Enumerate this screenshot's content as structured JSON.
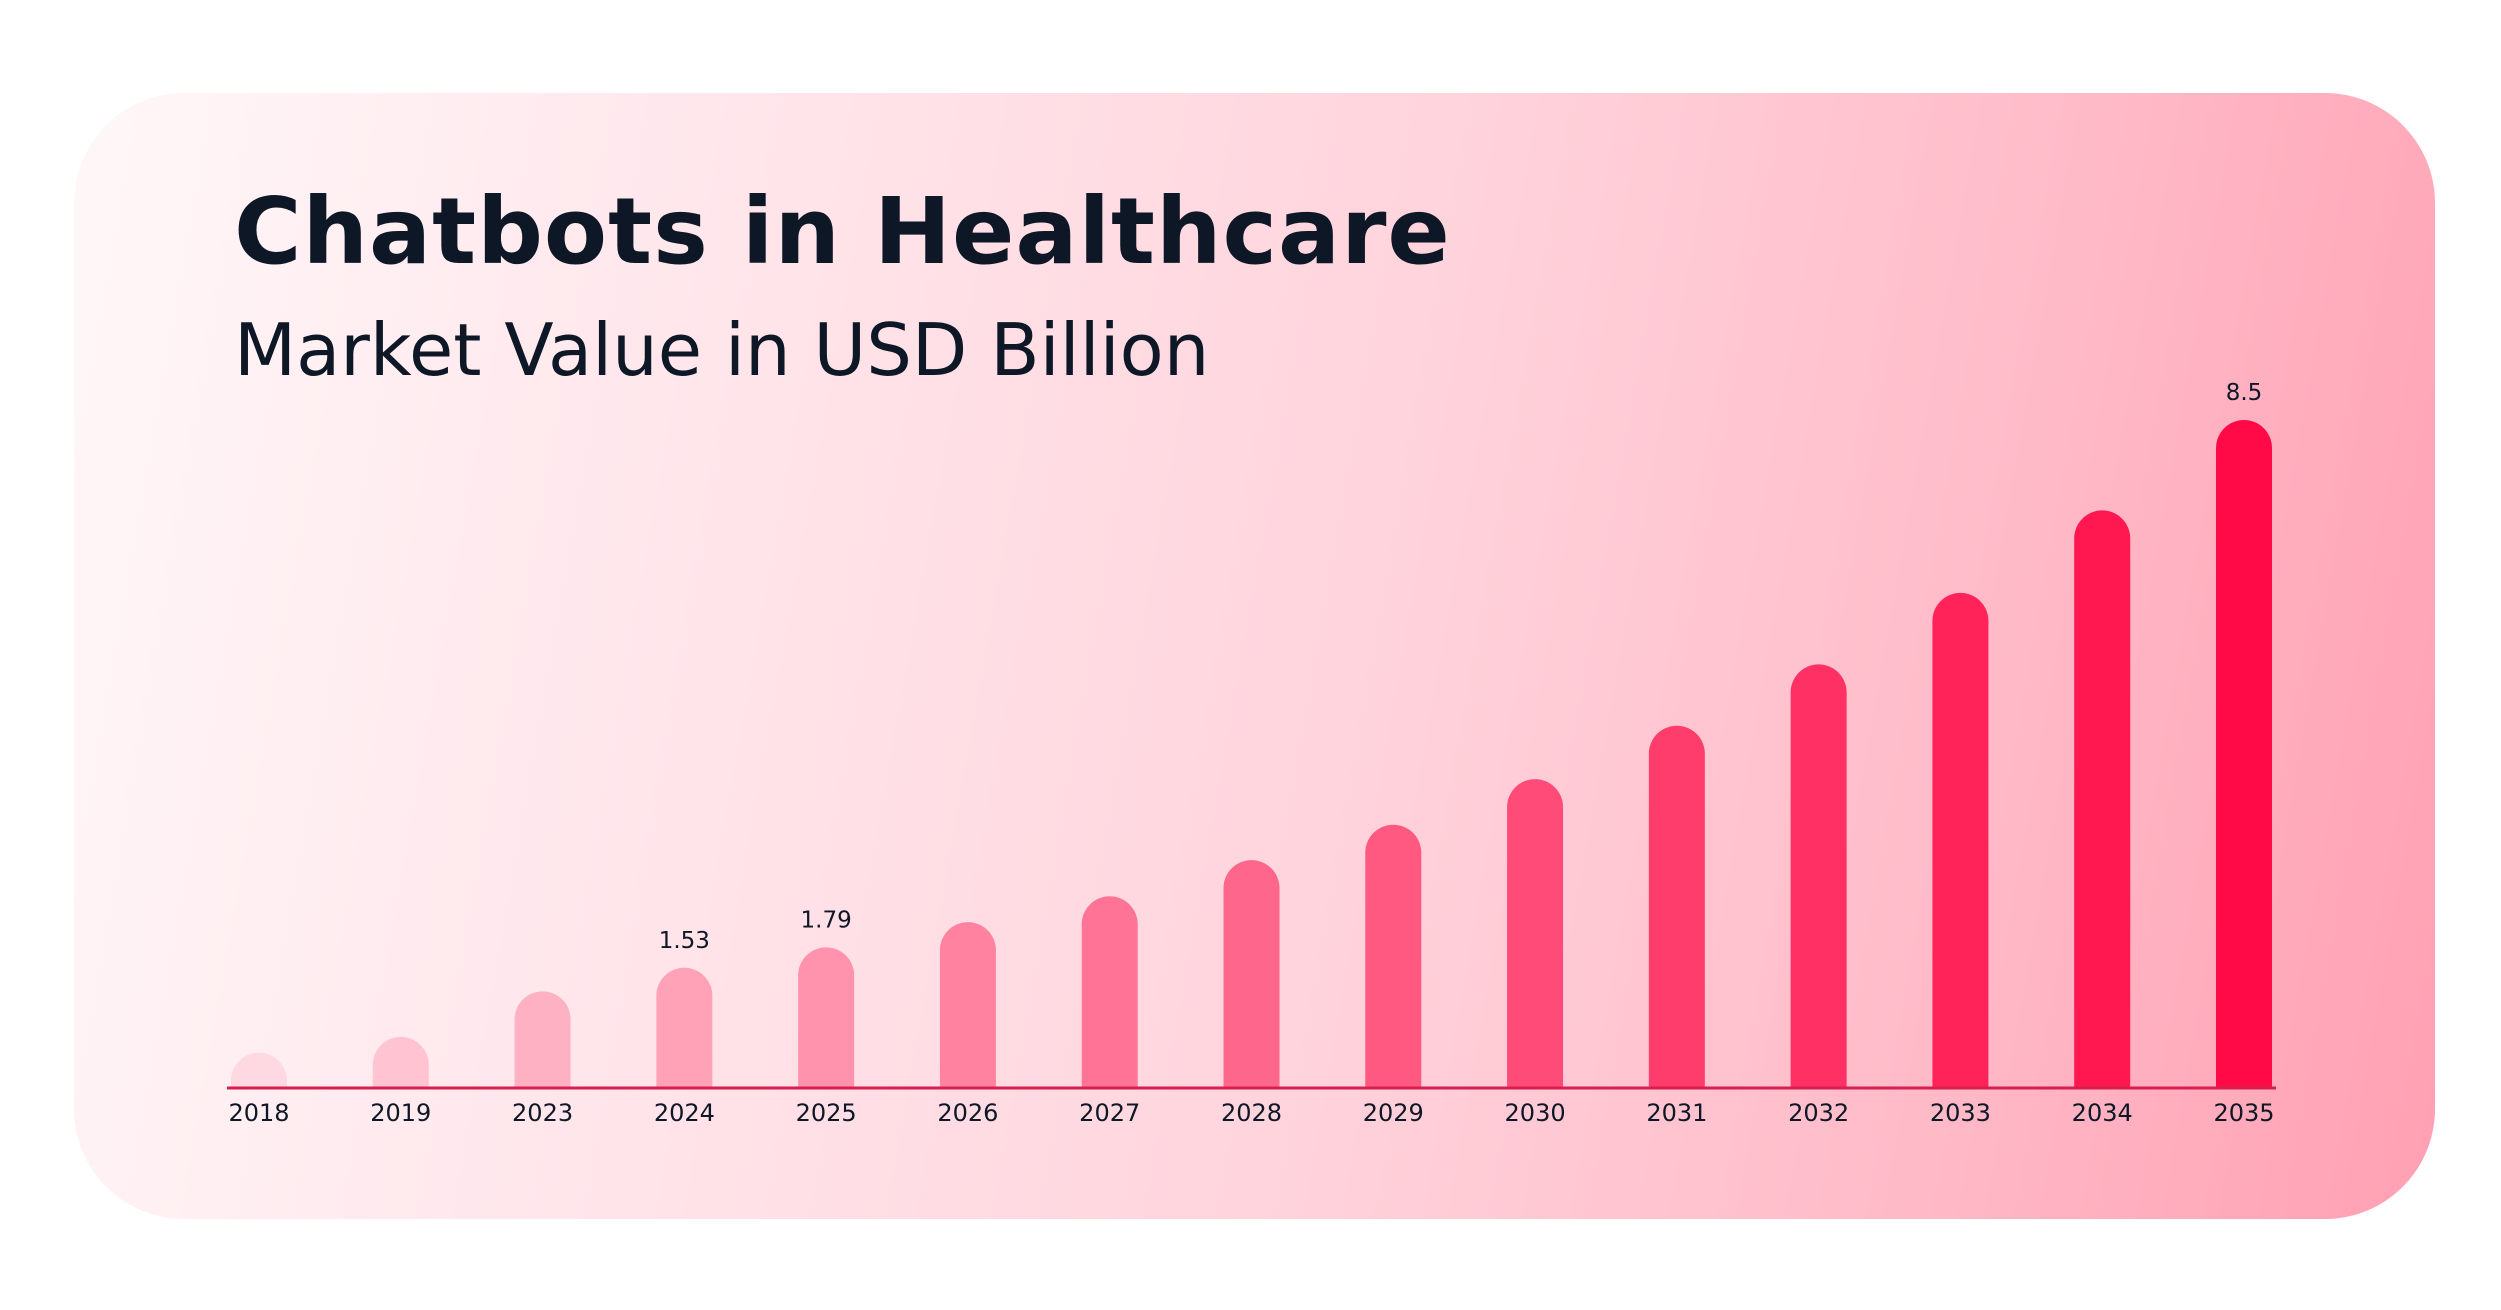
{
  "title": "Chatbots in Healthcare",
  "subtitle": "Market Value in USD Billion",
  "chart_data": {
    "type": "bar",
    "title": "Chatbots in Healthcare",
    "subtitle": "Market Value in USD Billion",
    "categories": [
      "2018",
      "2019",
      "2023",
      "2024",
      "2025",
      "2026",
      "2027",
      "2028",
      "2029",
      "2030",
      "2031",
      "2032",
      "2033",
      "2034",
      "2035"
    ],
    "values": [
      0.45,
      0.65,
      1.23,
      1.53,
      1.79,
      2.11,
      2.44,
      2.9,
      3.35,
      3.93,
      4.61,
      5.39,
      6.3,
      7.35,
      8.5
    ],
    "data_labels": [
      {
        "index": 3,
        "text": "1.53"
      },
      {
        "index": 4,
        "text": "1.79"
      },
      {
        "index": 14,
        "text": "8.5"
      }
    ],
    "ylim": [
      0,
      8.5
    ],
    "grid": false,
    "legend": "none",
    "colors": {
      "bar_start": "#ffd9e1",
      "bar_end": "#ff0a47",
      "baseline": "#d81d4f",
      "text": "#0e1726"
    }
  }
}
